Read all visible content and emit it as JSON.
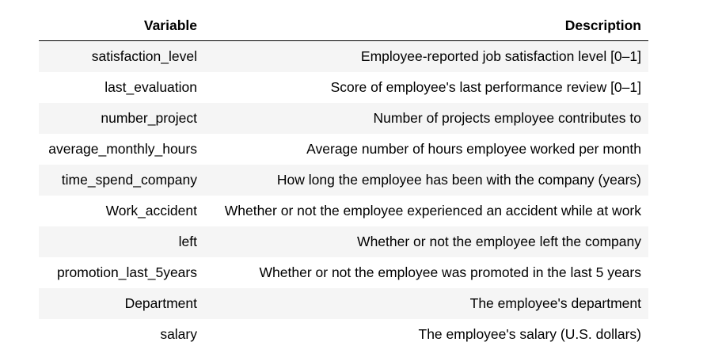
{
  "table": {
    "headers": [
      "Variable",
      "Description"
    ],
    "rows": [
      [
        "satisfaction_level",
        "Employee-reported job satisfaction level [0–1]"
      ],
      [
        "last_evaluation",
        "Score of employee's last performance review [0–1]"
      ],
      [
        "number_project",
        "Number of projects employee contributes to"
      ],
      [
        "average_monthly_hours",
        "Average number of hours employee worked per month"
      ],
      [
        "time_spend_company",
        "How long the employee has been with the company (years)"
      ],
      [
        "Work_accident",
        "Whether or not the employee experienced an accident while at work"
      ],
      [
        "left",
        "Whether or not the employee left the company"
      ],
      [
        "promotion_last_5years",
        "Whether or not the employee was promoted in the last 5 years"
      ],
      [
        "Department",
        "The employee's department"
      ],
      [
        "salary",
        "The employee's salary (U.S. dollars)"
      ]
    ]
  },
  "colors": {
    "stripe": "#f5f5f5",
    "header_rule": "#000000",
    "text": "#000000"
  }
}
